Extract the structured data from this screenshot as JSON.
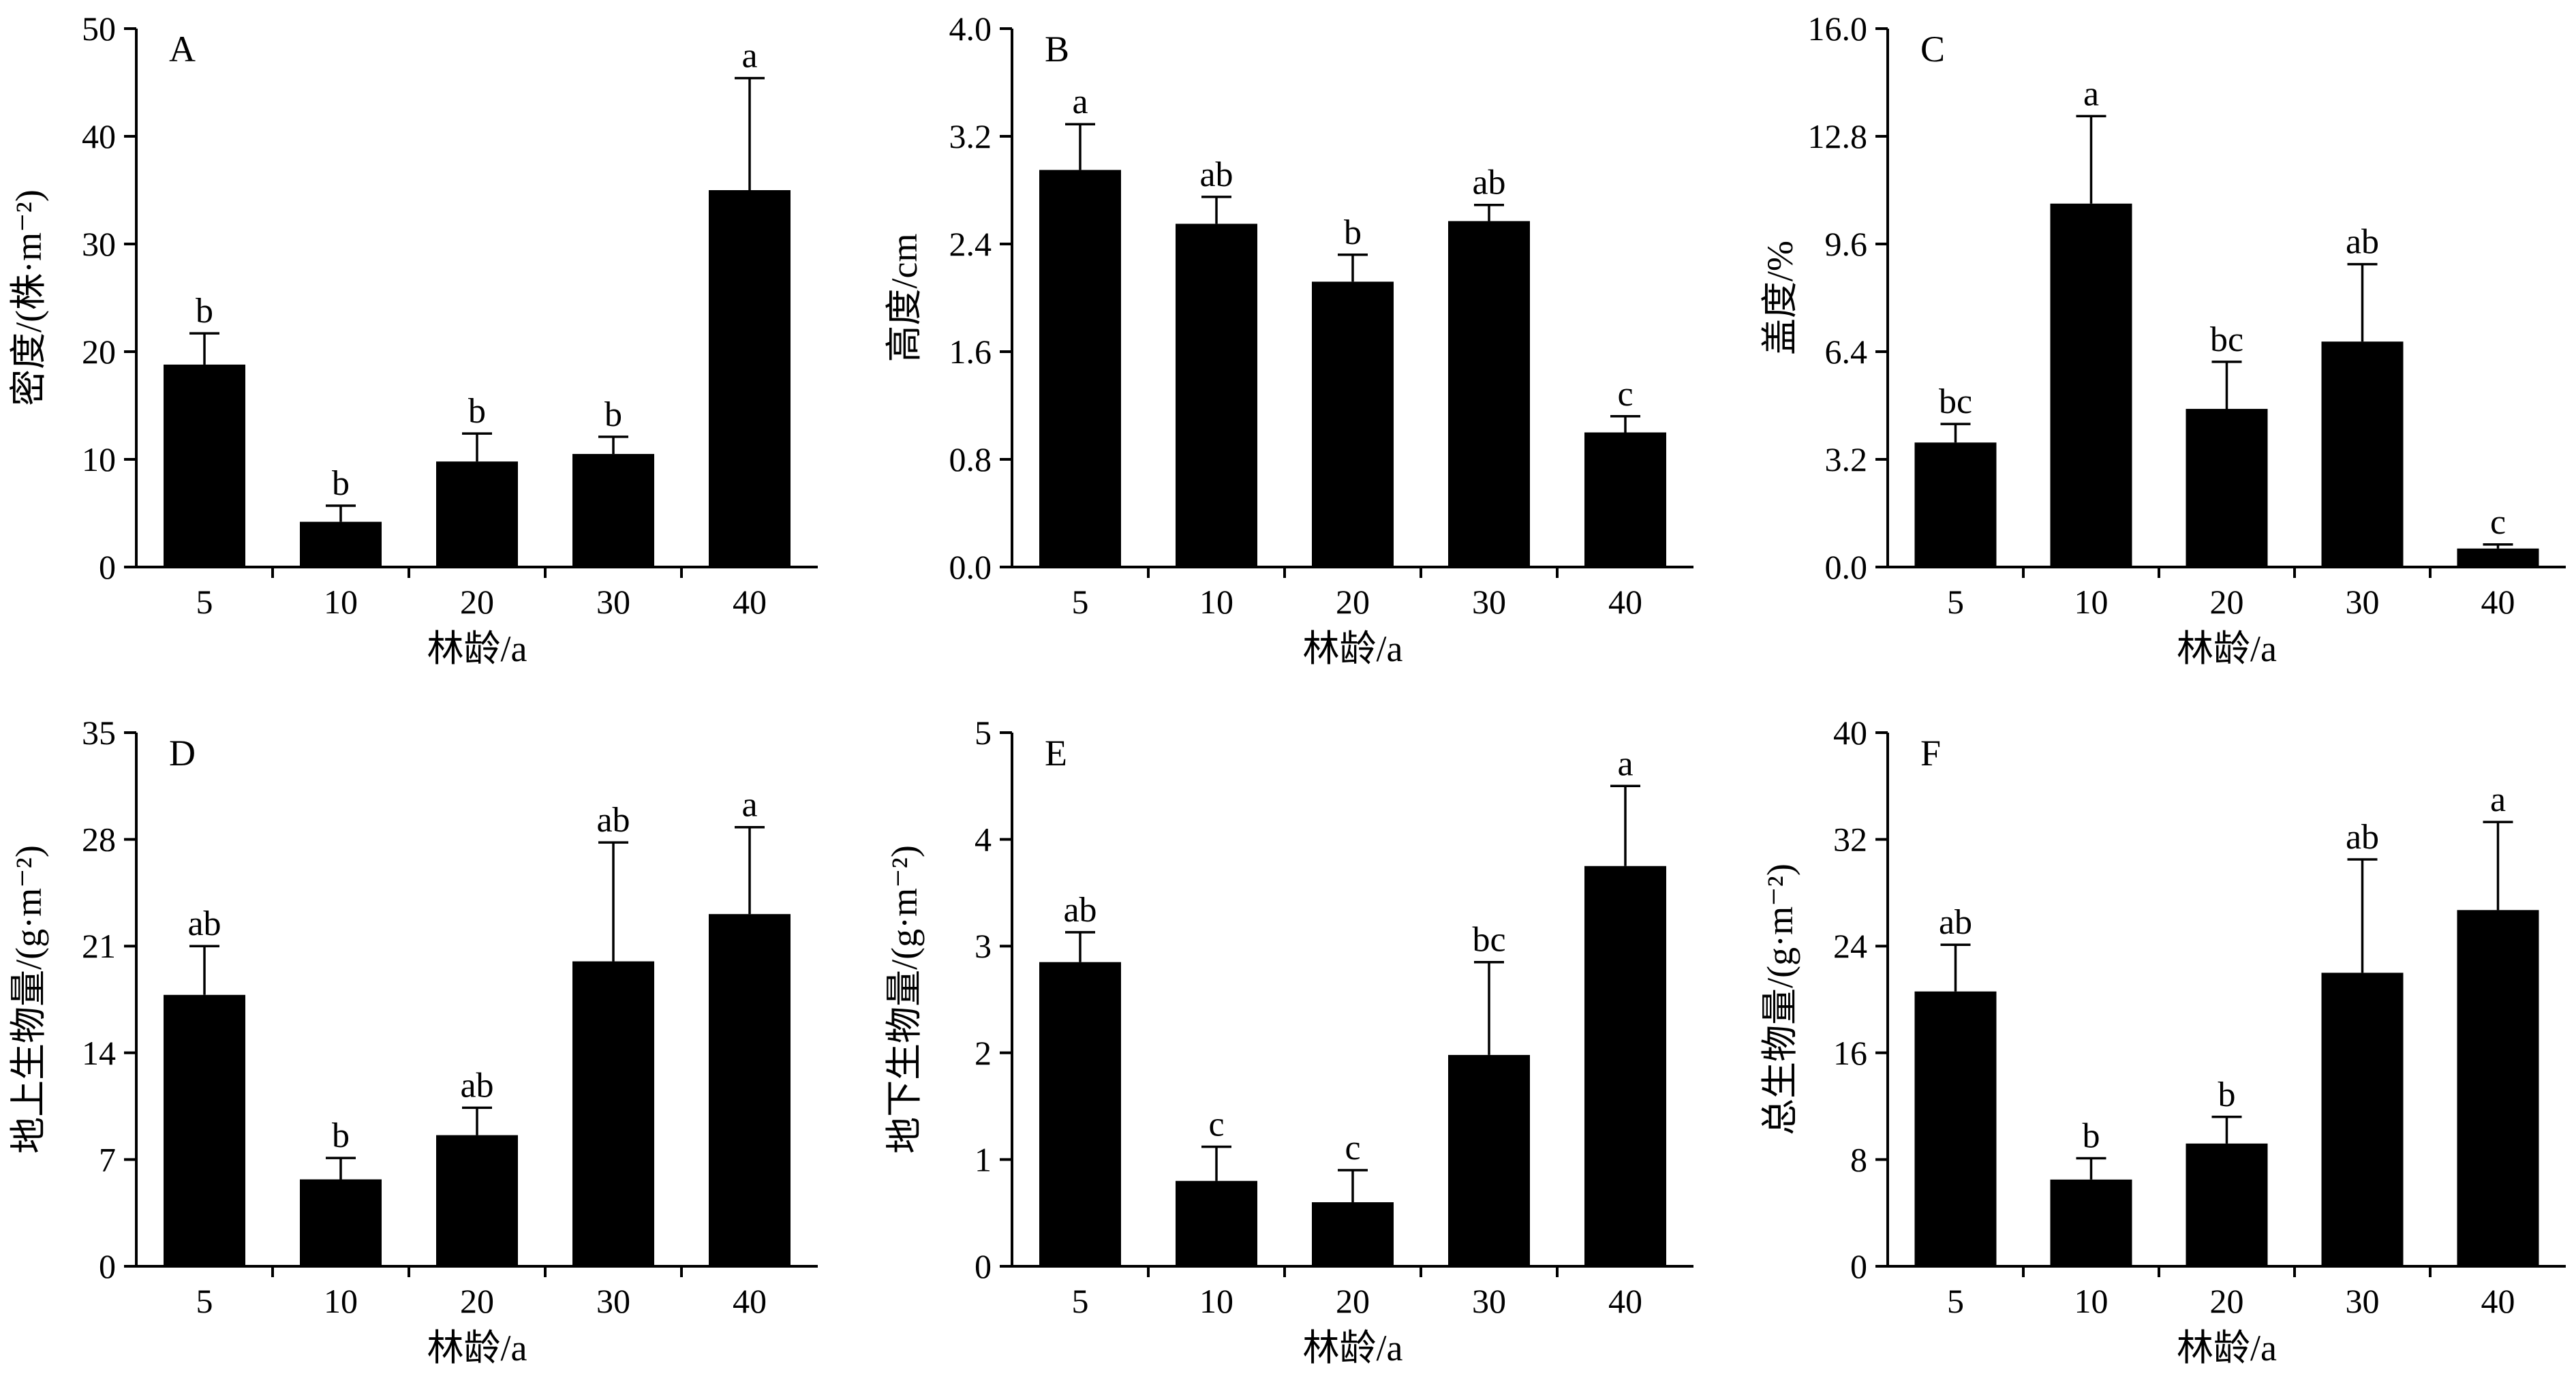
{
  "chart_data": [
    {
      "panel": "A",
      "type": "bar",
      "categories": [
        "5",
        "10",
        "20",
        "30",
        "40"
      ],
      "values": [
        18.8,
        4.2,
        9.8,
        10.5,
        35.0
      ],
      "errors": [
        2.9,
        1.5,
        2.6,
        1.6,
        10.4
      ],
      "significance": [
        "b",
        "b",
        "b",
        "b",
        "a"
      ],
      "yticks": [
        "0",
        "10",
        "20",
        "30",
        "40",
        "50"
      ],
      "ylim": [
        0,
        50
      ],
      "xlabel": "林龄/a",
      "ylabel": "密度/(株·m⁻²)"
    },
    {
      "panel": "B",
      "type": "bar",
      "categories": [
        "5",
        "10",
        "20",
        "30",
        "40"
      ],
      "values": [
        2.95,
        2.55,
        2.12,
        2.57,
        1.0
      ],
      "errors": [
        0.34,
        0.2,
        0.2,
        0.12,
        0.12
      ],
      "significance": [
        "a",
        "ab",
        "b",
        "ab",
        "c"
      ],
      "yticks": [
        "0.0",
        "0.8",
        "1.6",
        "2.4",
        "3.2",
        "4.0"
      ],
      "ylim": [
        0,
        4.0
      ],
      "xlabel": "林龄/a",
      "ylabel": "高度/cm"
    },
    {
      "panel": "C",
      "type": "bar",
      "categories": [
        "5",
        "10",
        "20",
        "30",
        "40"
      ],
      "values": [
        3.7,
        10.8,
        4.7,
        6.7,
        0.55
      ],
      "errors": [
        0.55,
        2.6,
        1.4,
        2.3,
        0.12
      ],
      "significance": [
        "bc",
        "a",
        "bc",
        "ab",
        "c"
      ],
      "yticks": [
        "0.0",
        "3.2",
        "6.4",
        "9.6",
        "12.8",
        "16.0"
      ],
      "ylim": [
        0,
        16.0
      ],
      "xlabel": "林龄/a",
      "ylabel": "盖度/%"
    },
    {
      "panel": "D",
      "type": "bar",
      "categories": [
        "5",
        "10",
        "20",
        "30",
        "40"
      ],
      "values": [
        17.8,
        5.7,
        8.6,
        20.0,
        23.1
      ],
      "errors": [
        3.2,
        1.4,
        1.8,
        7.8,
        5.7
      ],
      "significance": [
        "ab",
        "b",
        "ab",
        "ab",
        "a"
      ],
      "yticks": [
        "0",
        "7",
        "14",
        "21",
        "28",
        "35"
      ],
      "ylim": [
        0,
        35
      ],
      "xlabel": "林龄/a",
      "ylabel": "地上生物量/(g·m⁻²)"
    },
    {
      "panel": "E",
      "type": "bar",
      "categories": [
        "5",
        "10",
        "20",
        "30",
        "40"
      ],
      "values": [
        2.85,
        0.8,
        0.6,
        1.98,
        3.75
      ],
      "errors": [
        0.28,
        0.32,
        0.3,
        0.87,
        0.75
      ],
      "significance": [
        "ab",
        "c",
        "c",
        "bc",
        "a"
      ],
      "yticks": [
        "0",
        "1",
        "2",
        "3",
        "4",
        "5"
      ],
      "ylim": [
        0,
        5
      ],
      "xlabel": "林龄/a",
      "ylabel": "地下生物量/(g·m⁻²)"
    },
    {
      "panel": "F",
      "type": "bar",
      "categories": [
        "5",
        "10",
        "20",
        "30",
        "40"
      ],
      "values": [
        20.6,
        6.5,
        9.2,
        22.0,
        26.7
      ],
      "errors": [
        3.5,
        1.6,
        2.0,
        8.5,
        6.6
      ],
      "significance": [
        "ab",
        "b",
        "b",
        "ab",
        "a"
      ],
      "yticks": [
        "0",
        "8",
        "16",
        "24",
        "32",
        "40"
      ],
      "ylim": [
        0,
        40
      ],
      "xlabel": "林龄/a",
      "ylabel": "总生物量/(g·m⁻²)"
    }
  ]
}
